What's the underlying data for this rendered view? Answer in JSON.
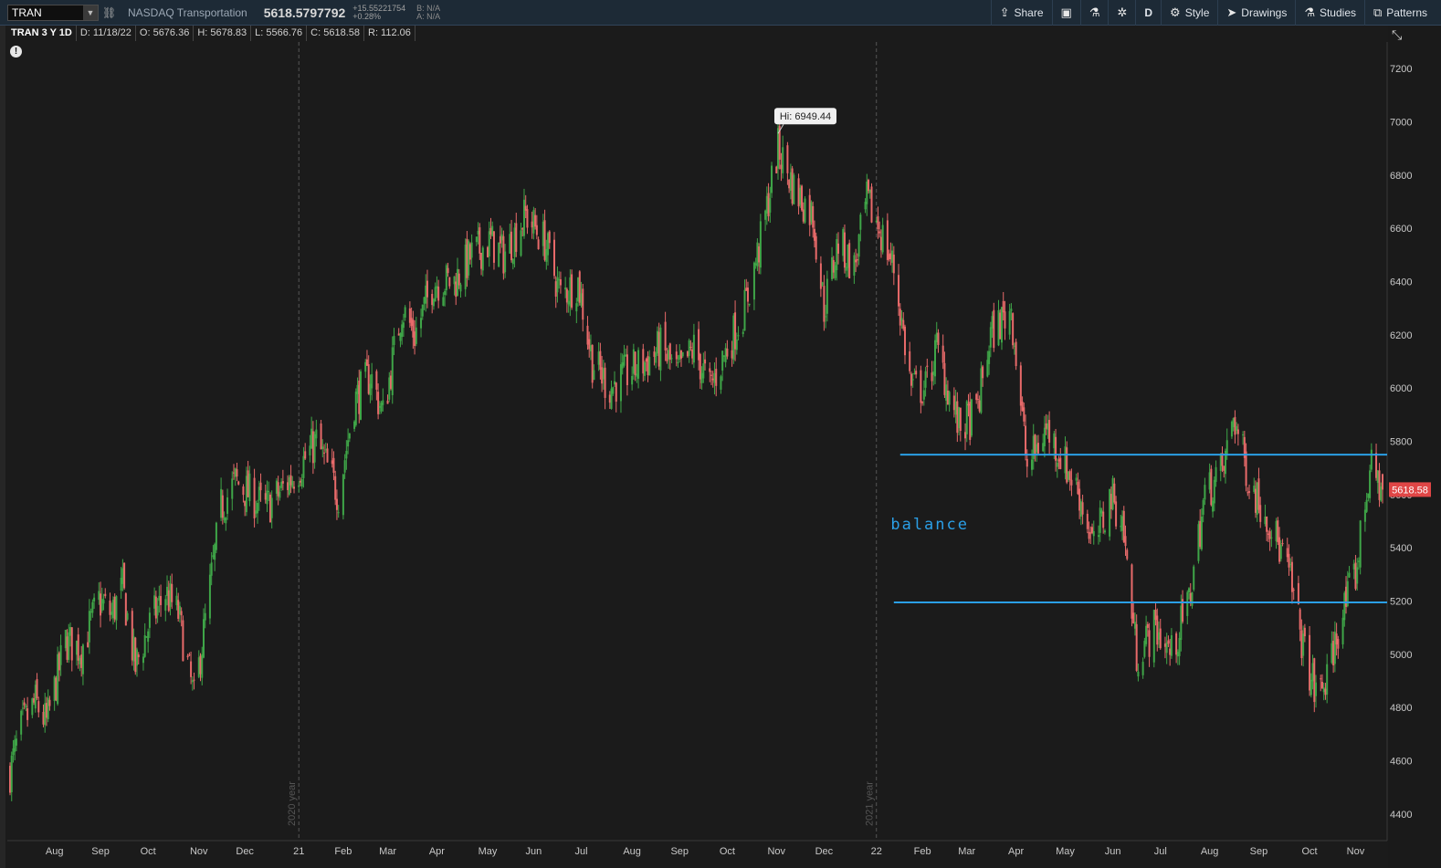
{
  "toolbar": {
    "symbol": "TRAN",
    "description": "NASDAQ Transportation",
    "last": "5618.5797792",
    "change": "+15.55221754",
    "change_pct": "+0.28%",
    "bid": "B: N/A",
    "ask": "A: N/A",
    "share": "Share",
    "period": "D",
    "style": "Style",
    "drawings": "Drawings",
    "studies": "Studies",
    "patterns": "Patterns"
  },
  "infobar": {
    "title": "TRAN 3 Y 1D",
    "date": "D: 11/18/22",
    "open": "O: 5676.36",
    "high": "H: 5678.83",
    "low": "L: 5566.76",
    "close": "C: 5618.58",
    "range": "R: 112.06"
  },
  "icons": {
    "alert": "alert-icon",
    "share": "share-icon",
    "calendar": "calendar-icon",
    "flask": "flask-icon",
    "gear": "gear-icon",
    "style": "style-icon",
    "drawings": "cursor-icon",
    "studies": "studies-icon",
    "patterns": "patterns-icon",
    "expand": "expand-icon"
  },
  "chart_data": {
    "type": "candlestick",
    "ylim": [
      4300,
      7300
    ],
    "y_ticks": [
      4400,
      4600,
      4800,
      5000,
      5200,
      5400,
      5600,
      5800,
      6000,
      6200,
      6400,
      6600,
      6800,
      7000,
      7200
    ],
    "x_labels": [
      "Aug",
      "Sep",
      "Oct",
      "Nov",
      "Dec",
      "21",
      "Feb",
      "Mar",
      "Apr",
      "May",
      "Jun",
      "Jul",
      "Aug",
      "Sep",
      "Oct",
      "Nov",
      "Dec",
      "22",
      "Feb",
      "Mar",
      "Apr",
      "May",
      "Jun",
      "Jul",
      "Aug",
      "Sep",
      "Oct",
      "Nov"
    ],
    "x_start": "2020-07-06",
    "x_end": "2022-11-18",
    "close_path": [
      [
        "2020-07-06",
        4560
      ],
      [
        "2020-07-13",
        4720
      ],
      [
        "2020-07-22",
        4820
      ],
      [
        "2020-07-29",
        4740
      ],
      [
        "2020-08-10",
        5050
      ],
      [
        "2020-08-20",
        5020
      ],
      [
        "2020-08-31",
        5200
      ],
      [
        "2020-09-08",
        5150
      ],
      [
        "2020-09-15",
        5250
      ],
      [
        "2020-09-23",
        4950
      ],
      [
        "2020-10-01",
        5100
      ],
      [
        "2020-10-12",
        5230
      ],
      [
        "2020-10-20",
        5150
      ],
      [
        "2020-10-30",
        4830
      ],
      [
        "2020-11-09",
        5250
      ],
      [
        "2020-11-16",
        5550
      ],
      [
        "2020-11-25",
        5650
      ],
      [
        "2020-12-04",
        5600
      ],
      [
        "2020-12-14",
        5550
      ],
      [
        "2020-12-22",
        5600
      ],
      [
        "2021-01-04",
        5700
      ],
      [
        "2021-01-15",
        5800
      ],
      [
        "2021-01-29",
        5600
      ],
      [
        "2021-02-08",
        5950
      ],
      [
        "2021-02-18",
        6050
      ],
      [
        "2021-02-26",
        5900
      ],
      [
        "2021-03-10",
        6300
      ],
      [
        "2021-03-18",
        6200
      ],
      [
        "2021-03-30",
        6400
      ],
      [
        "2021-04-12",
        6400
      ],
      [
        "2021-04-23",
        6500
      ],
      [
        "2021-05-05",
        6550
      ],
      [
        "2021-05-13",
        6500
      ],
      [
        "2021-05-27",
        6650
      ],
      [
        "2021-06-08",
        6550
      ],
      [
        "2021-06-18",
        6350
      ],
      [
        "2021-06-29",
        6400
      ],
      [
        "2021-07-08",
        6100
      ],
      [
        "2021-07-19",
        6000
      ],
      [
        "2021-07-29",
        6050
      ],
      [
        "2021-08-11",
        6100
      ],
      [
        "2021-08-20",
        6150
      ],
      [
        "2021-08-31",
        6050
      ],
      [
        "2021-09-10",
        6150
      ],
      [
        "2021-09-20",
        6000
      ],
      [
        "2021-10-01",
        6150
      ],
      [
        "2021-10-12",
        6300
      ],
      [
        "2021-10-22",
        6550
      ],
      [
        "2021-11-02",
        6900
      ],
      [
        "2021-11-12",
        6750
      ],
      [
        "2021-11-24",
        6650
      ],
      [
        "2021-12-01",
        6300
      ],
      [
        "2021-12-10",
        6550
      ],
      [
        "2021-12-20",
        6450
      ],
      [
        "2021-12-28",
        6700
      ],
      [
        "2022-01-05",
        6600
      ],
      [
        "2022-01-14",
        6450
      ],
      [
        "2022-01-25",
        6000
      ],
      [
        "2022-02-03",
        6000
      ],
      [
        "2022-02-10",
        6150
      ],
      [
        "2022-02-24",
        5850
      ],
      [
        "2022-03-07",
        5900
      ],
      [
        "2022-03-16",
        6200
      ],
      [
        "2022-03-29",
        6300
      ],
      [
        "2022-04-08",
        5700
      ],
      [
        "2022-04-20",
        5850
      ],
      [
        "2022-04-29",
        5750
      ],
      [
        "2022-05-11",
        5600
      ],
      [
        "2022-05-20",
        5400
      ],
      [
        "2022-05-31",
        5600
      ],
      [
        "2022-06-07",
        5500
      ],
      [
        "2022-06-16",
        5000
      ],
      [
        "2022-06-28",
        5100
      ],
      [
        "2022-07-08",
        5000
      ],
      [
        "2022-07-19",
        5200
      ],
      [
        "2022-07-29",
        5600
      ],
      [
        "2022-08-10",
        5700
      ],
      [
        "2022-08-16",
        5900
      ],
      [
        "2022-08-26",
        5650
      ],
      [
        "2022-09-08",
        5500
      ],
      [
        "2022-09-20",
        5300
      ],
      [
        "2022-09-30",
        5000
      ],
      [
        "2022-10-07",
        4850
      ],
      [
        "2022-10-14",
        4900
      ],
      [
        "2022-10-21",
        5100
      ],
      [
        "2022-11-01",
        5300
      ],
      [
        "2022-11-10",
        5700
      ],
      [
        "2022-11-18",
        5618.58
      ]
    ],
    "annotations": {
      "high_label": "Hi: 6949.44",
      "high_value": 6949.44,
      "high_date": "2021-11-02",
      "year_2020_label": "2020 year",
      "year_2021_label": "2021 year",
      "balance_label": "balance",
      "balance_upper": 5750,
      "balance_lower": 5195,
      "balance_upper_start": "2022-01-18",
      "balance_lower_start": "2022-01-14",
      "last_price_label": "5618.58",
      "last_price": 5618.58
    },
    "colors": {
      "up": "#3fa648",
      "down": "#e86a6a",
      "balance_line": "#2b9fe6",
      "grid": "#555555",
      "background": "#1b1b1b"
    }
  }
}
